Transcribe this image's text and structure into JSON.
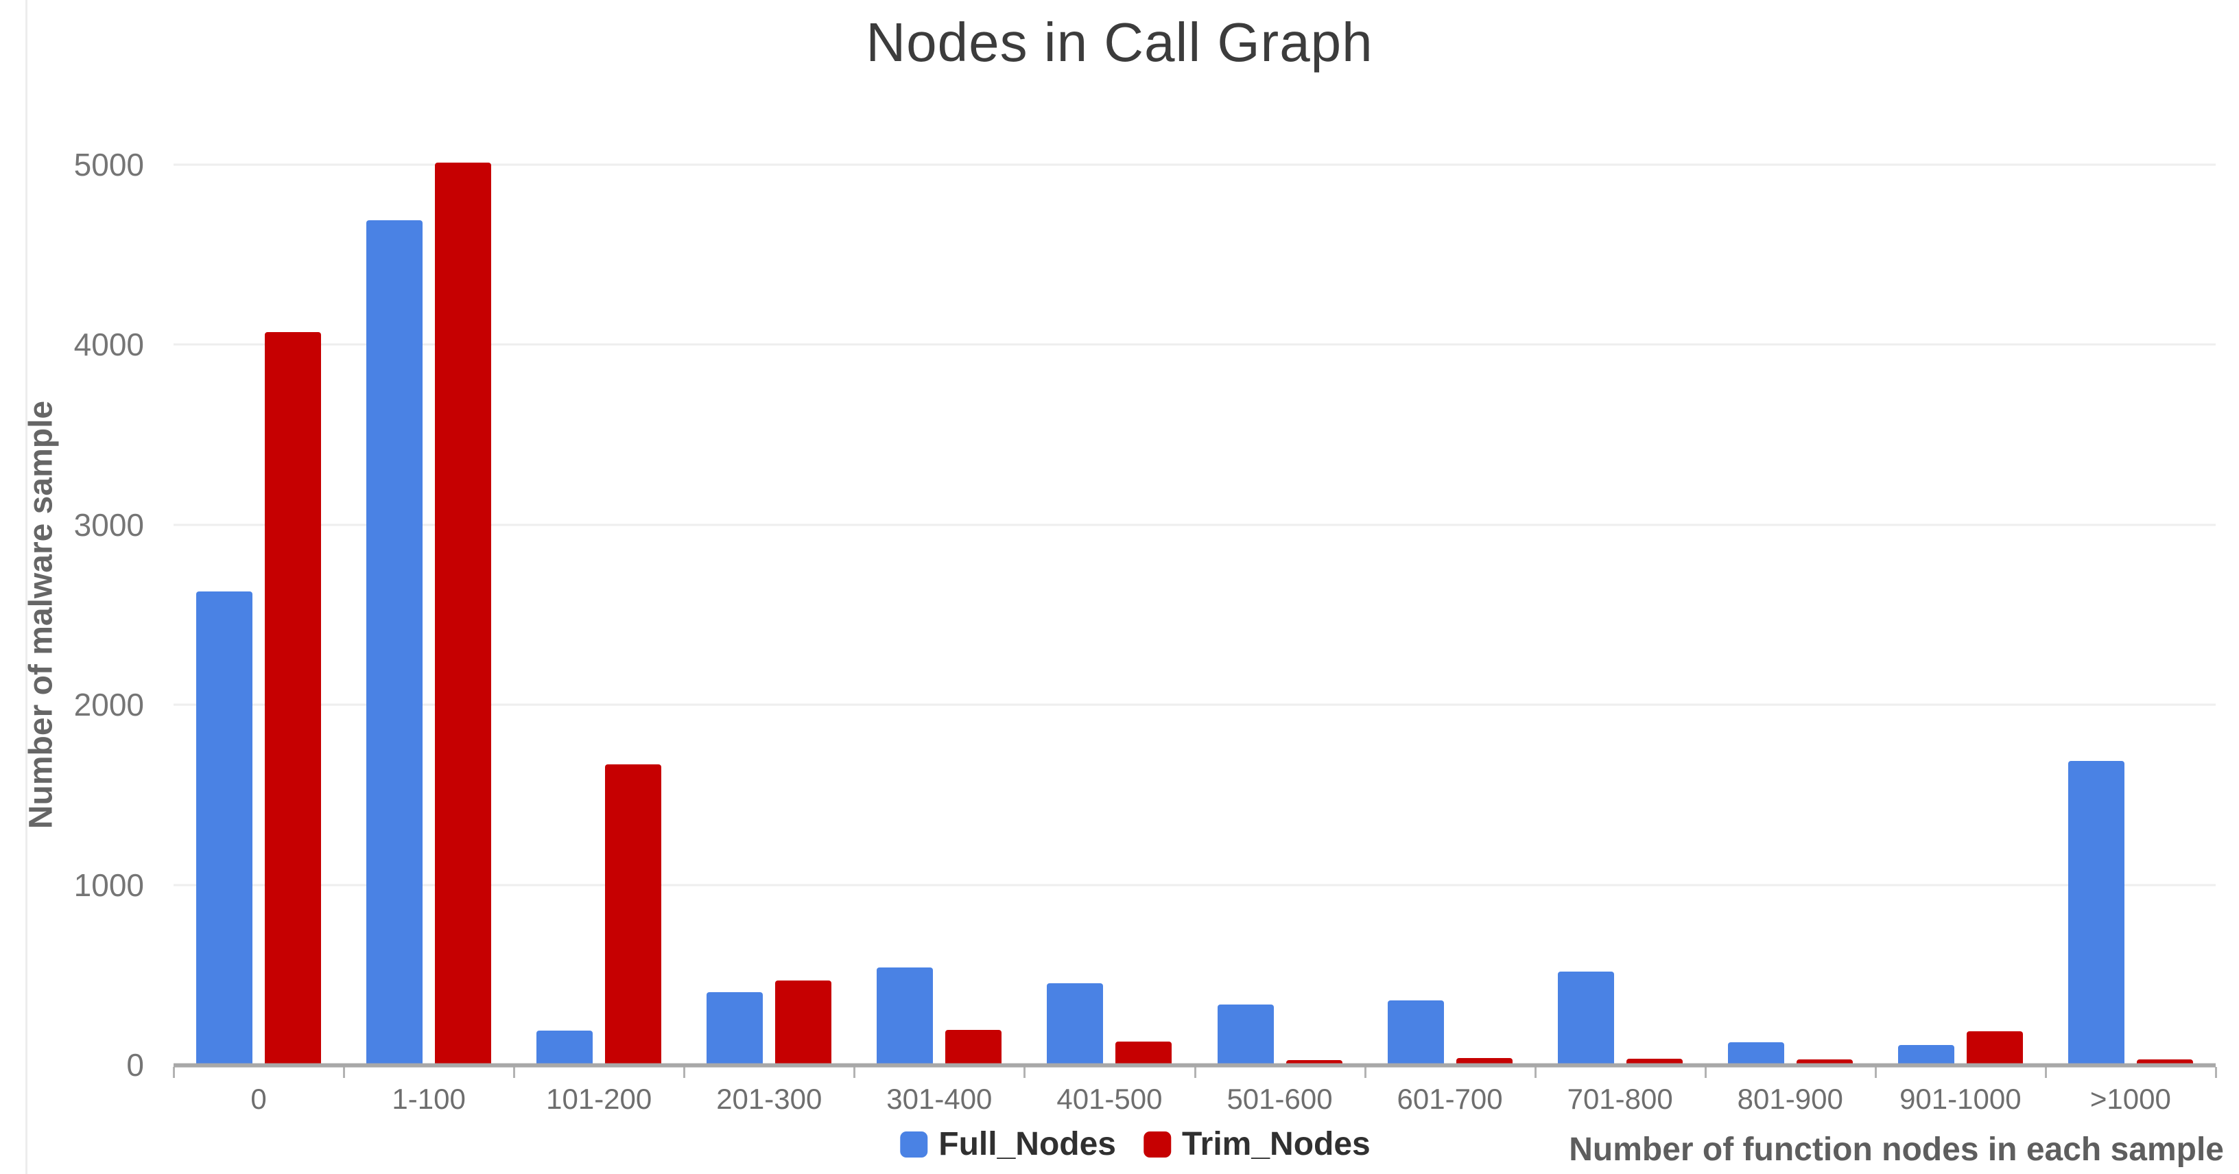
{
  "chart_data": {
    "type": "bar",
    "title": "Nodes in Call Graph",
    "xlabel": "Number of function nodes in each sample",
    "ylabel": "Number of malware sample",
    "categories": [
      "0",
      "1-100",
      "101-200",
      "201-300",
      "301-400",
      "401-500",
      "501-600",
      "601-700",
      "701-800",
      "801-900",
      "901-1000",
      ">1000"
    ],
    "series": [
      {
        "name": "Full_Nodes",
        "color": "#4a82e4",
        "values": [
          2630,
          4690,
          190,
          405,
          540,
          455,
          335,
          360,
          520,
          125,
          110,
          1690
        ]
      },
      {
        "name": "Trim_Nodes",
        "color": "#c60001",
        "values": [
          4070,
          5010,
          1670,
          470,
          195,
          130,
          25,
          40,
          35,
          30,
          185,
          30
        ]
      }
    ],
    "ylim": [
      0,
      5000
    ],
    "yticks": [
      0,
      1000,
      2000,
      3000,
      4000,
      5000
    ],
    "grid": true,
    "legend_position": "bottom"
  }
}
